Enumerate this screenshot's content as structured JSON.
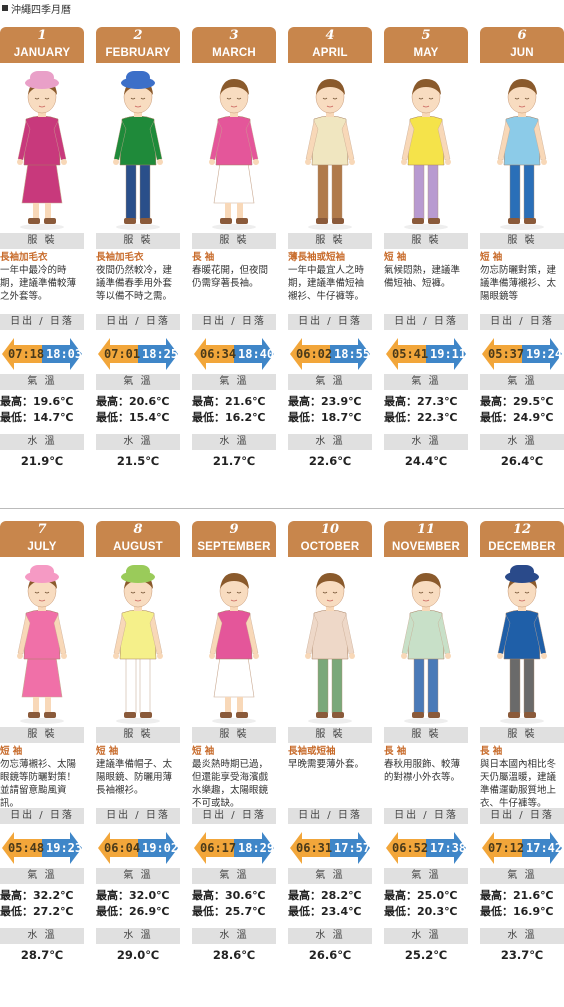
{
  "title": "沖繩四季月曆",
  "labels": {
    "clothing": "服 裝",
    "sun": "日出 / 日落",
    "temp": "氣 溫",
    "water": "水 溫"
  },
  "colors": {
    "header": "#c8864c",
    "bar": "#e0e0e0",
    "sunrise": "#f2a63a",
    "sunset": "#3f86c8",
    "accent_text": "#c86c2c"
  },
  "months": [
    {
      "num": "1",
      "name": "JANUARY",
      "cloth_title": "長袖加毛衣",
      "cloth_desc": "一年中最冷的時期，建議準備較薄之外套等。",
      "sunrise": "07:18",
      "sunset": "18:03",
      "high": "最高：19.6℃",
      "low": "最低：14.7℃",
      "water": "21.9℃",
      "shirt": "#c8397c",
      "pants": "#c8397c",
      "hat": "#e9a0c8",
      "long": true
    },
    {
      "num": "2",
      "name": "FEBRUARY",
      "cloth_title": "長袖加毛衣",
      "cloth_desc": "夜間仍然較冷，建議準備春季用外套等以備不時之需。",
      "sunrise": "07:01",
      "sunset": "18:25",
      "high": "最高：20.6℃",
      "low": "最低：15.4℃",
      "water": "21.5℃",
      "shirt": "#1f8a3a",
      "pants": "#2a4f8a",
      "hat": "#3c6fc8",
      "long": true
    },
    {
      "num": "3",
      "name": "MARCH",
      "cloth_title": "長 袖",
      "cloth_desc": "春暖花開，但夜間仍需穿著長袖。",
      "sunrise": "06:34",
      "sunset": "18:40",
      "high": "最高：21.6℃",
      "low": "最低：16.2℃",
      "water": "21.7℃",
      "shirt": "#e4569a",
      "pants": "#ffffff",
      "hat": "",
      "long": true
    },
    {
      "num": "4",
      "name": "APRIL",
      "cloth_title": "薄長袖或短袖",
      "cloth_desc": "一年中最宜人之時期，建議準備短袖襯衫、牛仔褲等。",
      "sunrise": "06:02",
      "sunset": "18:55",
      "high": "最高：23.9℃",
      "low": "最低：18.7℃",
      "water": "22.6℃",
      "shirt": "#f0e6c0",
      "pants": "#b07a4a",
      "hat": "",
      "long": false
    },
    {
      "num": "5",
      "name": "MAY",
      "cloth_title": "短 袖",
      "cloth_desc": "氣候悶熱，建議準備短袖、短褲。",
      "sunrise": "05:41",
      "sunset": "19:11",
      "high": "最高：27.3℃",
      "low": "最低：22.3℃",
      "water": "24.4℃",
      "shirt": "#f5e34a",
      "pants": "#b89ad0",
      "hat": "",
      "long": false
    },
    {
      "num": "6",
      "name": "JUN",
      "cloth_title": "短 袖",
      "cloth_desc": "勿忘防曬對策，建議準備薄襯衫、太陽眼鏡等",
      "sunrise": "05:37",
      "sunset": "19:24",
      "high": "最高：29.5℃",
      "low": "最低：24.9℃",
      "water": "26.4℃",
      "shirt": "#8ccbe8",
      "pants": "#2a6fb8",
      "hat": "",
      "long": false
    },
    {
      "num": "7",
      "name": "JULY",
      "cloth_title": "短 袖",
      "cloth_desc": "勿忘薄襯衫、太陽眼鏡等防曬對策！並請留意颱風資訊。",
      "sunrise": "05:48",
      "sunset": "19:23",
      "high": "最高：32.2℃",
      "low": "最低：27.2℃",
      "water": "28.7℃",
      "shirt": "#f070a8",
      "pants": "#f070a8",
      "hat": "#f59ac4",
      "long": false
    },
    {
      "num": "8",
      "name": "AUGUST",
      "cloth_title": "短 袖",
      "cloth_desc": "建議準備帽子、太陽眼鏡、防曬用薄長袖襯衫。",
      "sunrise": "06:04",
      "sunset": "19:02",
      "high": "最高：32.0℃",
      "low": "最低：26.9℃",
      "water": "29.0℃",
      "shirt": "#f5f08a",
      "pants": "#ffffff",
      "hat": "#9acb5a",
      "long": false
    },
    {
      "num": "9",
      "name": "SEPTEMBER",
      "cloth_title": "短 袖",
      "cloth_desc": "最炎熱時期已過，但還能享受海濱戲水樂趣，太陽眼鏡不可或缺。",
      "sunrise": "06:17",
      "sunset": "18:29",
      "high": "最高：30.6℃",
      "low": "最低：25.7℃",
      "water": "28.6℃",
      "shirt": "#e4569a",
      "pants": "#ffffff",
      "hat": "",
      "long": false
    },
    {
      "num": "10",
      "name": "OCTOBER",
      "cloth_title": "長袖或短袖",
      "cloth_desc": "早晚需要薄外套。",
      "sunrise": "06:31",
      "sunset": "17:57",
      "high": "最高：28.2℃",
      "low": "最低：23.4℃",
      "water": "26.6℃",
      "shirt": "#eed8c8",
      "pants": "#7aa87a",
      "hat": "",
      "long": true
    },
    {
      "num": "11",
      "name": "NOVEMBER",
      "cloth_title": "長 袖",
      "cloth_desc": "春秋用服飾、較薄的對襟小外衣等。",
      "sunrise": "06:52",
      "sunset": "17:38",
      "high": "最高：25.0℃",
      "low": "最低：20.3℃",
      "water": "25.2℃",
      "shirt": "#c8e0c8",
      "pants": "#4a7ab8",
      "hat": "",
      "long": true
    },
    {
      "num": "12",
      "name": "DECEMBER",
      "cloth_title": "長 袖",
      "cloth_desc": "與日本國內相比冬天仍屬溫暖，建議準備運動服質地上衣、牛仔褲等。",
      "sunrise": "07:12",
      "sunset": "17:42",
      "high": "最高：21.6℃",
      "low": "最低：16.9℃",
      "water": "23.7℃",
      "shirt": "#1f5fa8",
      "pants": "#6a6a6a",
      "hat": "#2a4a8a",
      "long": true
    }
  ]
}
